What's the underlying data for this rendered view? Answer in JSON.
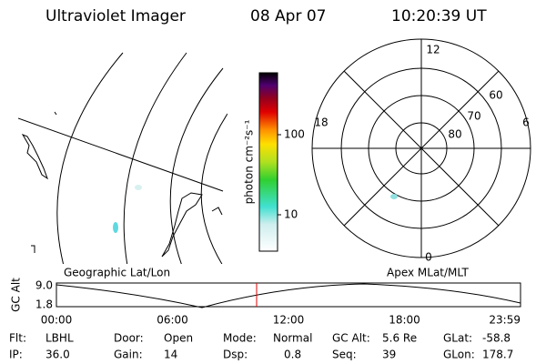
{
  "header": {
    "title": "Ultraviolet Imager",
    "date": "08 Apr 07",
    "time": "10:20:39 UT"
  },
  "map": {
    "title": "Geographic Lat/Lon"
  },
  "colorbar": {
    "label": "photon cm⁻²s⁻¹",
    "ticks": [
      "100",
      "10"
    ]
  },
  "polar": {
    "title": "Apex MLat/MLT",
    "mlt_labels": [
      "12",
      "18",
      "6",
      "0"
    ],
    "mlat_labels": [
      "60",
      "70",
      "80"
    ]
  },
  "timeline": {
    "ylabel": "GC Alt",
    "yticks": [
      "9.0",
      "1.8"
    ],
    "xticks": [
      "00:00",
      "06:00",
      "12:00",
      "18:00",
      "23:59"
    ]
  },
  "info": [
    [
      {
        "label": "Flt:",
        "value": "LBHL"
      },
      {
        "label": "Door:",
        "value": "Open"
      },
      {
        "label": "Mode:",
        "value": "Normal"
      },
      {
        "label": "GC Alt:",
        "value": "5.6 Re"
      },
      {
        "label": "GLat:",
        "value": "-58.8"
      }
    ],
    [
      {
        "label": "IP:",
        "value": "36.0"
      },
      {
        "label": "Gain:",
        "value": "14"
      },
      {
        "label": "Dsp:",
        "value": "0.8"
      },
      {
        "label": "Seq:",
        "value": "39"
      },
      {
        "label": "GLon:",
        "value": "178.7"
      }
    ]
  ]
}
